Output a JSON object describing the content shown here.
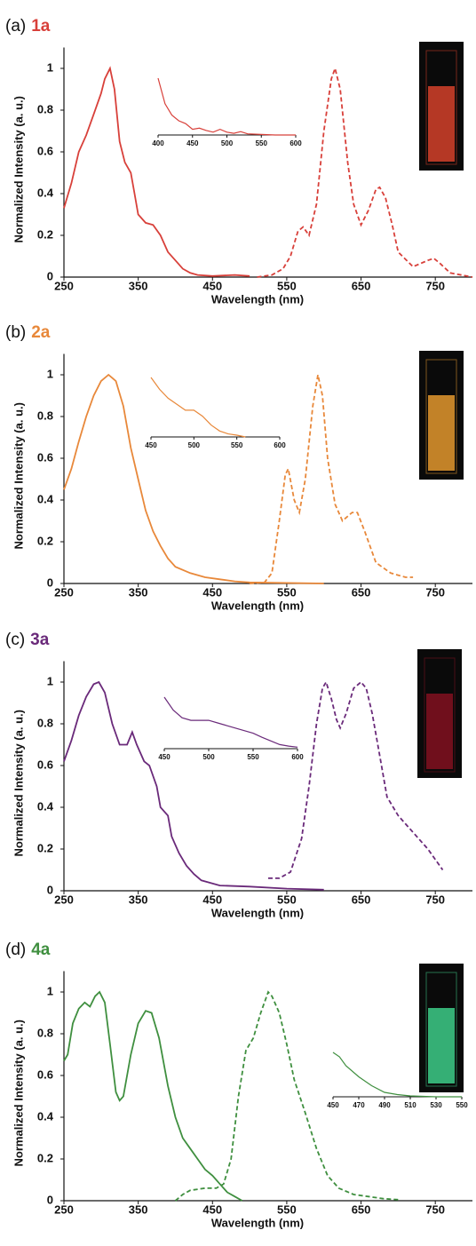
{
  "chart_data": [
    {
      "type": "line",
      "label": "(a)",
      "compound": "1a",
      "color": "#d8403a",
      "photo_color": "#e0442c",
      "xlabel": "Wavelength (nm)",
      "ylabel": "Normalized Intensity (a. u.)",
      "xlim": [
        250,
        800
      ],
      "ylim": [
        0,
        1.1
      ],
      "xticks": [
        250,
        350,
        450,
        550,
        650,
        750
      ],
      "yticks": [
        0,
        0.2,
        0.4,
        0.6,
        0.8,
        1
      ],
      "series": [
        {
          "style": "solid",
          "x": [
            250,
            260,
            270,
            280,
            290,
            300,
            305,
            312,
            318,
            325,
            332,
            340,
            345,
            350,
            360,
            370,
            380,
            390,
            400,
            410,
            420,
            430,
            450,
            480,
            500
          ],
          "values": [
            0.33,
            0.45,
            0.6,
            0.68,
            0.78,
            0.88,
            0.95,
            1.0,
            0.9,
            0.65,
            0.55,
            0.5,
            0.4,
            0.3,
            0.26,
            0.25,
            0.2,
            0.12,
            0.08,
            0.04,
            0.02,
            0.01,
            0.005,
            0.01,
            0.005
          ]
        },
        {
          "style": "dashed",
          "x": [
            510,
            530,
            545,
            555,
            565,
            572,
            580,
            590,
            600,
            610,
            615,
            622,
            632,
            640,
            650,
            660,
            670,
            675,
            683,
            692,
            700,
            720,
            740,
            748,
            755,
            770,
            800
          ],
          "values": [
            0,
            0.01,
            0.04,
            0.1,
            0.22,
            0.24,
            0.2,
            0.35,
            0.7,
            0.95,
            1.0,
            0.9,
            0.55,
            0.35,
            0.25,
            0.32,
            0.42,
            0.43,
            0.38,
            0.25,
            0.12,
            0.05,
            0.08,
            0.09,
            0.07,
            0.02,
            0
          ]
        }
      ],
      "inset": {
        "xlim": [
          400,
          600
        ],
        "ylim": [
          0,
          1
        ],
        "xticks": [
          400,
          450,
          500,
          550,
          600
        ],
        "x": [
          400,
          410,
          420,
          430,
          440,
          450,
          460,
          470,
          480,
          490,
          500,
          510,
          520,
          530,
          550,
          570,
          600
        ],
        "values": [
          1.0,
          0.55,
          0.35,
          0.25,
          0.2,
          0.1,
          0.12,
          0.08,
          0.05,
          0.1,
          0.05,
          0.03,
          0.06,
          0.02,
          0.01,
          0,
          0
        ]
      }
    },
    {
      "type": "line",
      "label": "(b)",
      "compound": "2a",
      "color": "#e8883a",
      "photo_color": "#f0a030",
      "xlabel": "Wavelength (nm)",
      "ylabel": "Normalized Intensity (a. u.)",
      "xlim": [
        250,
        800
      ],
      "ylim": [
        0,
        1.1
      ],
      "xticks": [
        250,
        350,
        450,
        550,
        650,
        750
      ],
      "yticks": [
        0,
        0.2,
        0.4,
        0.6,
        0.8,
        1
      ],
      "series": [
        {
          "style": "solid",
          "x": [
            250,
            260,
            270,
            280,
            290,
            300,
            310,
            320,
            330,
            340,
            350,
            360,
            370,
            380,
            390,
            400,
            420,
            440,
            460,
            480,
            500,
            600
          ],
          "values": [
            0.45,
            0.55,
            0.68,
            0.8,
            0.9,
            0.97,
            1.0,
            0.97,
            0.85,
            0.65,
            0.5,
            0.35,
            0.25,
            0.18,
            0.12,
            0.08,
            0.05,
            0.03,
            0.02,
            0.01,
            0.005,
            0
          ]
        },
        {
          "style": "dashed",
          "x": [
            500,
            520,
            530,
            540,
            548,
            552,
            560,
            567,
            575,
            585,
            592,
            598,
            605,
            615,
            625,
            638,
            645,
            655,
            670,
            690,
            710,
            720
          ],
          "values": [
            0,
            0.005,
            0.05,
            0.3,
            0.52,
            0.55,
            0.4,
            0.34,
            0.5,
            0.85,
            1.0,
            0.9,
            0.6,
            0.38,
            0.3,
            0.34,
            0.34,
            0.25,
            0.1,
            0.05,
            0.03,
            0.03
          ]
        }
      ],
      "inset": {
        "xlim": [
          450,
          600
        ],
        "ylim": [
          0,
          1
        ],
        "xticks": [
          450,
          500,
          550,
          600
        ],
        "x": [
          450,
          460,
          470,
          480,
          490,
          500,
          510,
          520,
          530,
          540,
          550,
          560
        ],
        "values": [
          1.0,
          0.8,
          0.65,
          0.55,
          0.45,
          0.45,
          0.35,
          0.2,
          0.1,
          0.05,
          0.03,
          0
        ]
      }
    },
    {
      "type": "line",
      "label": "(c)",
      "compound": "3a",
      "color": "#6a2a7a",
      "photo_color": "#8a1020",
      "xlabel": "Wavelength (nm)",
      "ylabel": "Normalized Intensity (a. u.)",
      "xlim": [
        250,
        800
      ],
      "ylim": [
        0,
        1.1
      ],
      "xticks": [
        250,
        350,
        450,
        550,
        650,
        750
      ],
      "yticks": [
        0,
        0.2,
        0.4,
        0.6,
        0.8,
        1
      ],
      "series": [
        {
          "style": "solid",
          "x": [
            250,
            260,
            270,
            280,
            290,
            297,
            305,
            315,
            325,
            335,
            342,
            348,
            358,
            365,
            375,
            380,
            390,
            395,
            405,
            415,
            425,
            435,
            445,
            460,
            500,
            550,
            600
          ],
          "values": [
            0.62,
            0.72,
            0.84,
            0.93,
            0.99,
            1.0,
            0.95,
            0.8,
            0.7,
            0.7,
            0.76,
            0.7,
            0.62,
            0.6,
            0.5,
            0.4,
            0.36,
            0.26,
            0.18,
            0.12,
            0.08,
            0.05,
            0.04,
            0.025,
            0.02,
            0.01,
            0.005
          ]
        },
        {
          "style": "dashed",
          "x": [
            525,
            540,
            555,
            570,
            580,
            590,
            598,
            603,
            610,
            617,
            622,
            630,
            640,
            650,
            657,
            665,
            675,
            685,
            700,
            720,
            740,
            760
          ],
          "values": [
            0.06,
            0.06,
            0.09,
            0.25,
            0.5,
            0.8,
            0.97,
            1.0,
            0.92,
            0.82,
            0.78,
            0.85,
            0.97,
            1.0,
            0.97,
            0.85,
            0.65,
            0.45,
            0.36,
            0.28,
            0.2,
            0.1
          ]
        }
      ],
      "inset": {
        "xlim": [
          450,
          600
        ],
        "ylim": [
          0,
          1
        ],
        "xticks": [
          450,
          500,
          550,
          600
        ],
        "x": [
          450,
          460,
          470,
          480,
          490,
          500,
          510,
          520,
          530,
          540,
          550,
          560,
          570,
          580,
          590,
          600
        ],
        "values": [
          1.0,
          0.75,
          0.6,
          0.55,
          0.55,
          0.55,
          0.5,
          0.45,
          0.4,
          0.35,
          0.3,
          0.22,
          0.15,
          0.08,
          0.05,
          0.03
        ]
      }
    },
    {
      "type": "line",
      "label": "(d)",
      "compound": "4a",
      "color": "#3f8f3f",
      "photo_color": "#40d890",
      "xlabel": "Wavelength (nm)",
      "ylabel": "Normalized Intensity (a. u.)",
      "xlim": [
        250,
        800
      ],
      "ylim": [
        0,
        1.1
      ],
      "xticks": [
        250,
        350,
        450,
        550,
        650,
        750
      ],
      "yticks": [
        0,
        0.2,
        0.4,
        0.6,
        0.8,
        1
      ],
      "series": [
        {
          "style": "solid",
          "x": [
            250,
            255,
            262,
            270,
            278,
            285,
            292,
            298,
            305,
            312,
            320,
            325,
            330,
            340,
            350,
            360,
            368,
            378,
            390,
            400,
            410,
            420,
            430,
            440,
            450,
            460,
            470,
            480,
            490
          ],
          "values": [
            0.67,
            0.7,
            0.85,
            0.92,
            0.95,
            0.93,
            0.98,
            1.0,
            0.95,
            0.75,
            0.52,
            0.48,
            0.5,
            0.7,
            0.85,
            0.91,
            0.9,
            0.78,
            0.55,
            0.4,
            0.3,
            0.25,
            0.2,
            0.15,
            0.12,
            0.08,
            0.04,
            0.02,
            0
          ]
        },
        {
          "style": "dashed",
          "x": [
            400,
            410,
            420,
            440,
            455,
            465,
            475,
            485,
            495,
            505,
            515,
            525,
            530,
            540,
            550,
            560,
            575,
            590,
            605,
            620,
            640,
            660,
            680,
            700
          ],
          "values": [
            0,
            0.03,
            0.05,
            0.06,
            0.06,
            0.08,
            0.2,
            0.5,
            0.72,
            0.78,
            0.9,
            1.0,
            0.98,
            0.9,
            0.75,
            0.58,
            0.42,
            0.25,
            0.12,
            0.06,
            0.03,
            0.02,
            0.01,
            0.005
          ]
        }
      ],
      "inset": {
        "xlim": [
          450,
          550
        ],
        "ylim": [
          0,
          1
        ],
        "xticks": [
          450,
          470,
          490,
          510,
          530,
          550
        ],
        "x": [
          450,
          455,
          460,
          470,
          480,
          490,
          500,
          510,
          520,
          530,
          550
        ],
        "values": [
          1.0,
          0.9,
          0.7,
          0.45,
          0.25,
          0.1,
          0.05,
          0.02,
          0.01,
          0,
          0
        ]
      }
    }
  ]
}
